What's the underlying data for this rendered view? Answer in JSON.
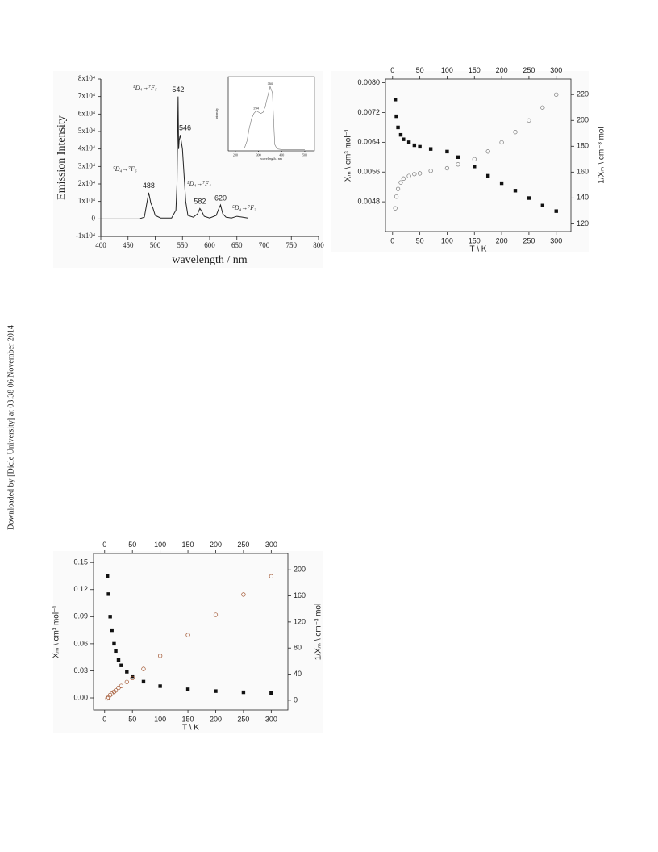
{
  "sidebar": "Downloaded by [Dicle University] at 03:38 06 November 2014",
  "chart_data": [
    {
      "type": "line",
      "ylabel": "Emission Intensity",
      "xlabel": "wavelength / nm",
      "color": "#222222",
      "x": [
        400,
        470,
        480,
        484,
        488,
        492,
        496,
        500,
        510,
        530,
        538,
        540,
        542,
        543,
        544,
        546,
        550,
        556,
        560,
        570,
        578,
        582,
        586,
        590,
        600,
        612,
        617,
        620,
        624,
        630,
        640,
        650,
        660,
        670
      ],
      "values": [
        0,
        0,
        1000,
        8000,
        15000,
        9000,
        6000,
        2000,
        500,
        500,
        5000,
        20000,
        70000,
        40000,
        45000,
        48000,
        40000,
        10000,
        2000,
        1000,
        3000,
        6000,
        4000,
        1500,
        500,
        2000,
        6000,
        8000,
        3000,
        1000,
        500,
        1500,
        1000,
        500
      ],
      "xlim": [
        400,
        800
      ],
      "xticks": [
        400,
        450,
        500,
        550,
        600,
        650,
        700,
        750,
        800
      ],
      "ylim": [
        -10000,
        80000
      ],
      "yticks": [
        {
          "value": -10000,
          "label": "-1x10⁴"
        },
        0,
        {
          "value": 10000,
          "label": "1x10⁴"
        },
        {
          "value": 20000,
          "label": "2x10⁴"
        },
        {
          "value": 30000,
          "label": "3x10⁴"
        },
        {
          "value": 40000,
          "label": "4x10⁴"
        },
        {
          "value": 50000,
          "label": "5x10⁴"
        },
        {
          "value": 60000,
          "label": "6x10⁴"
        },
        {
          "value": 70000,
          "label": "7x10⁴"
        },
        {
          "value": 80000,
          "label": "8x10⁴"
        }
      ],
      "peak_labels": [
        "488",
        "542",
        "546",
        "582",
        "620"
      ],
      "annotations": [
        "⁵D₄→⁷F₆",
        "⁵D₄→⁷F₅",
        "⁵D₄→⁷F₄",
        "⁵D₄→⁷F₃"
      ]
    },
    {
      "type": "line",
      "ylabel": "Intensity",
      "xlabel": "wavelength / nm",
      "color": "#777777",
      "x": [
        240,
        250,
        260,
        270,
        280,
        290,
        300,
        310,
        320,
        330,
        340,
        350,
        360,
        365,
        370,
        380,
        400,
        450,
        500
      ],
      "values": [
        0.05,
        0.15,
        0.35,
        0.5,
        0.58,
        0.62,
        0.6,
        0.58,
        0.6,
        0.7,
        0.85,
        1.0,
        0.9,
        0.5,
        0.1,
        0.03,
        0.02,
        0.02,
        0.02
      ],
      "xlim": [
        169,
        542
      ],
      "xticks": [
        200,
        300,
        400,
        500
      ],
      "ylim": [
        0,
        1.15
      ],
      "peak_labels": [
        "294",
        "350"
      ]
    },
    {
      "type": "scatter",
      "ylabel": "Xₘ \\ cm³ mol⁻¹",
      "y2label": "1/Xₘ \\ cm⁻³ mol",
      "xlabel": "T \\ K",
      "x": [
        5,
        7,
        10,
        15,
        20,
        30,
        40,
        50,
        70,
        100,
        120,
        150,
        175,
        200,
        225,
        250,
        275,
        300
      ],
      "series": [
        {
          "name": "Xm",
          "color": "#111111",
          "marker": "square",
          "values": [
            0.00755,
            0.0071,
            0.0068,
            0.0066,
            0.00648,
            0.0064,
            0.00632,
            0.00628,
            0.00622,
            0.00615,
            0.006,
            0.00575,
            0.0055,
            0.0053,
            0.0051,
            0.0049,
            0.0047,
            0.00455
          ]
        },
        {
          "name": "1/Xm",
          "color": "#777777",
          "marker": "circle",
          "axis": "y2",
          "values": [
            132,
            141,
            147,
            152,
            155,
            157,
            158.5,
            159,
            161,
            163,
            166,
            170,
            176,
            183,
            191,
            200,
            210,
            220
          ]
        }
      ],
      "xlim": [
        -13,
        327
      ],
      "xticks": [
        0,
        50,
        100,
        150,
        200,
        250,
        300
      ],
      "x2ticks": [
        0,
        50,
        100,
        150,
        200,
        250,
        300
      ],
      "ylim": [
        0.004,
        0.0081
      ],
      "yticks": [
        {
          "value": 0.0048,
          "label": "0.0048"
        },
        {
          "value": 0.0056,
          "label": "0.0056"
        },
        {
          "value": 0.0064,
          "label": "0.0064"
        },
        {
          "value": 0.0072,
          "label": "0.0072"
        },
        {
          "value": 0.008,
          "label": "0.0080"
        }
      ],
      "y2lim": [
        114,
        232
      ],
      "y2ticks": [
        120,
        140,
        160,
        180,
        200,
        220
      ]
    },
    {
      "type": "scatter",
      "ylabel": "Xₘ \\ cm³ mol⁻¹",
      "y2label": "1/Xₘ \\ cm⁻³ mol",
      "xlabel": "T \\ K",
      "x": [
        5,
        7,
        10,
        13,
        17,
        20,
        25,
        30,
        40,
        50,
        70,
        100,
        150,
        200,
        250,
        300
      ],
      "series": [
        {
          "name": "Xm",
          "color": "#111111",
          "marker": "square",
          "values": [
            0.135,
            0.115,
            0.09,
            0.075,
            0.06,
            0.052,
            0.042,
            0.036,
            0.029,
            0.024,
            0.018,
            0.013,
            0.0095,
            0.0075,
            0.0062,
            0.0055
          ]
        },
        {
          "name": "1/Xm",
          "color": "#a0522d",
          "marker": "circle",
          "axis": "y2",
          "values": [
            3,
            4.5,
            8,
            10,
            13,
            15,
            19,
            22,
            28,
            34,
            48,
            68,
            100,
            131,
            162,
            190
          ]
        }
      ],
      "xlim": [
        -20,
        330
      ],
      "xticks": [
        0,
        50,
        100,
        150,
        200,
        250,
        300
      ],
      "x2ticks": [
        0,
        50,
        100,
        150,
        200,
        250,
        300
      ],
      "ylim": [
        -0.0134,
        0.16
      ],
      "yticks": [
        {
          "value": 0,
          "label": "0.00"
        },
        {
          "value": 0.03,
          "label": "0.03"
        },
        {
          "value": 0.06,
          "label": "0.06"
        },
        {
          "value": 0.09,
          "label": "0.09"
        },
        {
          "value": 0.12,
          "label": "0.12"
        },
        {
          "value": 0.15,
          "label": "0.15"
        }
      ],
      "y2lim": [
        -15,
        225
      ],
      "y2ticks": [
        0,
        40,
        80,
        120,
        160,
        200
      ]
    }
  ]
}
